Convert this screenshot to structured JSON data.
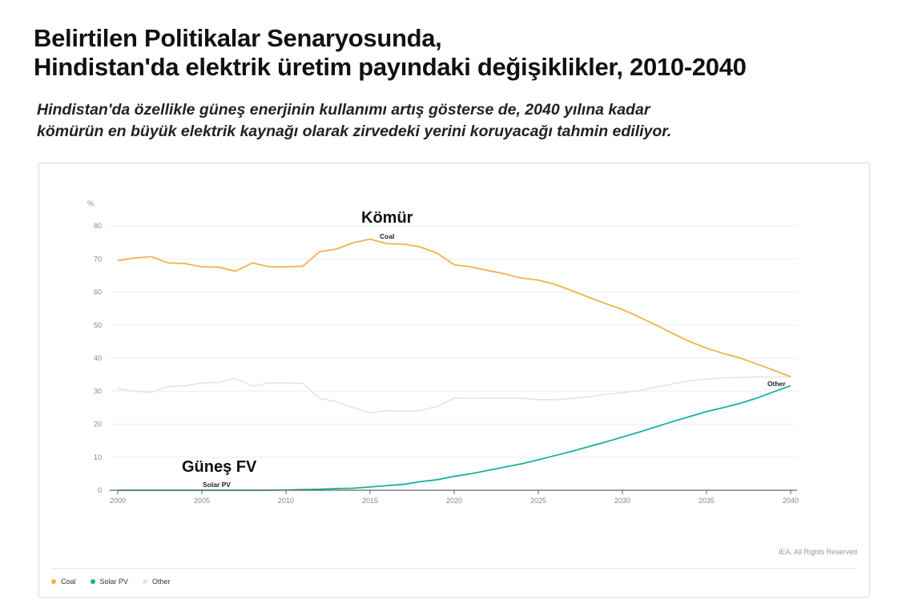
{
  "title_line1": "Belirtilen Politikalar Senaryosunda,",
  "title_line2": "Hindistan'da elektrik üretim payındaki değişiklikler, 2010-2040",
  "subtitle_line1": "Hindistan'da özellikle güneş enerjinin kullanımı artış gösterse de, 2040 yılına kadar",
  "subtitle_line2": "kömürün en büyük elektrik kaynağı olarak zirvedeki yerini koruyacağı tahmin ediliyor.",
  "credit": "IEA. All Rights Reserved",
  "annotations": {
    "coal_tr": "Kömür",
    "solar_tr": "Güneş FV",
    "coal": "Coal",
    "solar": "Solar PV",
    "other": "Other"
  },
  "chart_data": {
    "type": "line",
    "ylabel": "%",
    "ylim": [
      0,
      80
    ],
    "yticks": [
      0,
      10,
      20,
      30,
      40,
      50,
      60,
      70,
      80
    ],
    "xlim": [
      2000,
      2040
    ],
    "xticks": [
      2000,
      2005,
      2010,
      2015,
      2020,
      2025,
      2030,
      2035,
      2040
    ],
    "grid": true,
    "legend_position": "bottom-left",
    "x": [
      2000,
      2001,
      2002,
      2003,
      2004,
      2005,
      2006,
      2007,
      2008,
      2009,
      2010,
      2011,
      2012,
      2013,
      2014,
      2015,
      2016,
      2017,
      2018,
      2019,
      2020,
      2021,
      2022,
      2023,
      2024,
      2025,
      2026,
      2027,
      2028,
      2029,
      2030,
      2031,
      2032,
      2033,
      2034,
      2035,
      2036,
      2037,
      2038,
      2039,
      2040
    ],
    "series": [
      {
        "name": "Coal",
        "color": "#f2b34a",
        "values": [
          69.5,
          70.3,
          70.7,
          68.8,
          68.6,
          67.6,
          67.5,
          66.3,
          68.8,
          67.6,
          67.6,
          67.8,
          72.2,
          73,
          74.9,
          76,
          74.6,
          74.5,
          73.6,
          71.7,
          68.2,
          67.6,
          66.5,
          65.5,
          64.2,
          63.6,
          62.3,
          60.4,
          58.4,
          56.5,
          54.7,
          52.4,
          50,
          47.4,
          45,
          43,
          41.4,
          40,
          38.2,
          36.3,
          34.4
        ]
      },
      {
        "name": "Solar PV",
        "color": "#1aaf9c",
        "values": [
          0,
          0,
          0,
          0,
          0,
          0,
          0,
          0,
          0,
          0,
          0.1,
          0.2,
          0.3,
          0.5,
          0.6,
          1,
          1.4,
          1.8,
          2.6,
          3.2,
          4.2,
          5,
          6,
          7,
          8,
          9.2,
          10.5,
          11.8,
          13.2,
          14.6,
          16.1,
          17.6,
          19.2,
          20.8,
          22.3,
          23.8,
          25,
          26.3,
          27.9,
          29.8,
          31.6
        ]
      },
      {
        "name": "Other",
        "color": "#e4e4e4",
        "values": [
          30.8,
          30,
          29.6,
          31.4,
          31.6,
          32.5,
          32.6,
          33.9,
          31.5,
          32.5,
          32.5,
          32.3,
          27.8,
          26.8,
          25,
          23.4,
          24.1,
          24,
          24.1,
          25.4,
          27.9,
          27.8,
          27.9,
          27.9,
          27.9,
          27.4,
          27.4,
          27.8,
          28.3,
          29,
          29.5,
          30.2,
          31.2,
          32.2,
          33.1,
          33.7,
          34,
          34.1,
          34.3,
          34.3,
          34.3
        ]
      }
    ]
  }
}
